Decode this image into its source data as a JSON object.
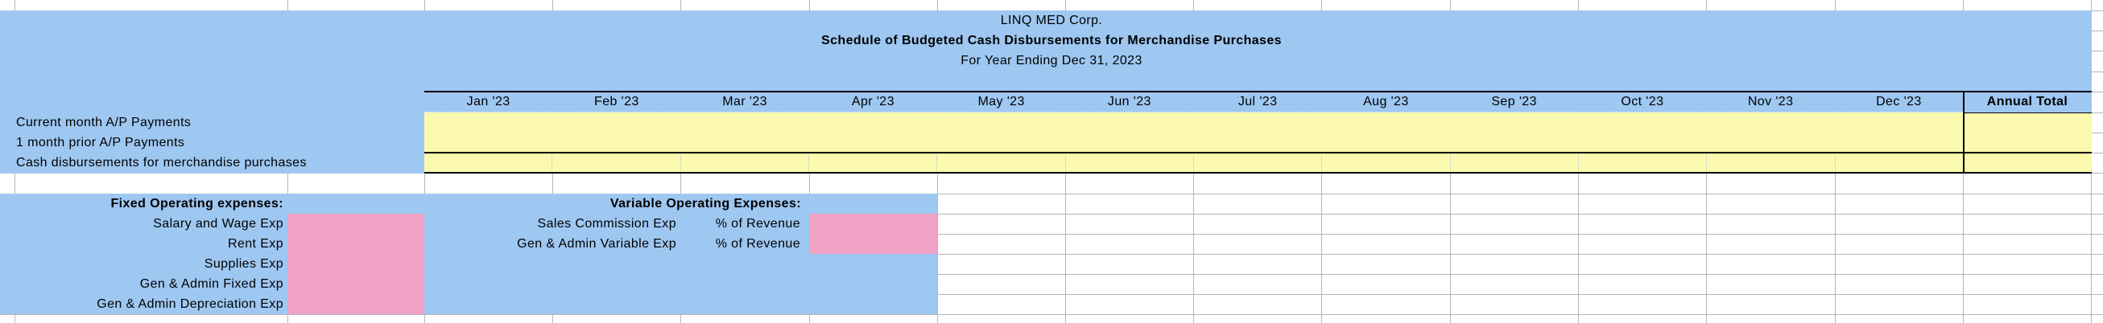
{
  "sheet": {
    "title": {
      "company": "LINQ MED Corp.",
      "schedule": "Schedule of Budgeted Cash Disbursements for Merchandise Purchases",
      "period": "For Year Ending Dec 31, 2023"
    },
    "months": [
      "Jan '23",
      "Feb '23",
      "Mar '23",
      "Apr '23",
      "May '23",
      "Jun '23",
      "Jul '23",
      "Aug '23",
      "Sep '23",
      "Oct '23",
      "Nov '23",
      "Dec '23"
    ],
    "annual_total_label": "Annual Total",
    "ap_section": {
      "rows": [
        "Current month A/P Payments",
        "1 month prior A/P Payments",
        "Cash disbursements for merchandise purchases"
      ]
    },
    "fixed_section": {
      "heading": "Fixed Operating expenses:",
      "rows": [
        "Salary and Wage Exp",
        "Rent Exp",
        "Supplies Exp",
        "Gen & Admin Fixed Exp",
        "Gen & Admin Depreciation Exp"
      ]
    },
    "variable_section": {
      "heading": "Variable Operating Expenses:",
      "rows": [
        {
          "label": "Sales Commission Exp",
          "basis": "% of Revenue"
        },
        {
          "label": "Gen & Admin Variable Exp",
          "basis": "% of Revenue"
        }
      ]
    },
    "colors": {
      "region_blue": "#9ec7f1",
      "input_yellow": "#fbf9ae",
      "input_pink": "#f0a1c6",
      "gridline_gray": "#b5b5b5"
    }
  }
}
